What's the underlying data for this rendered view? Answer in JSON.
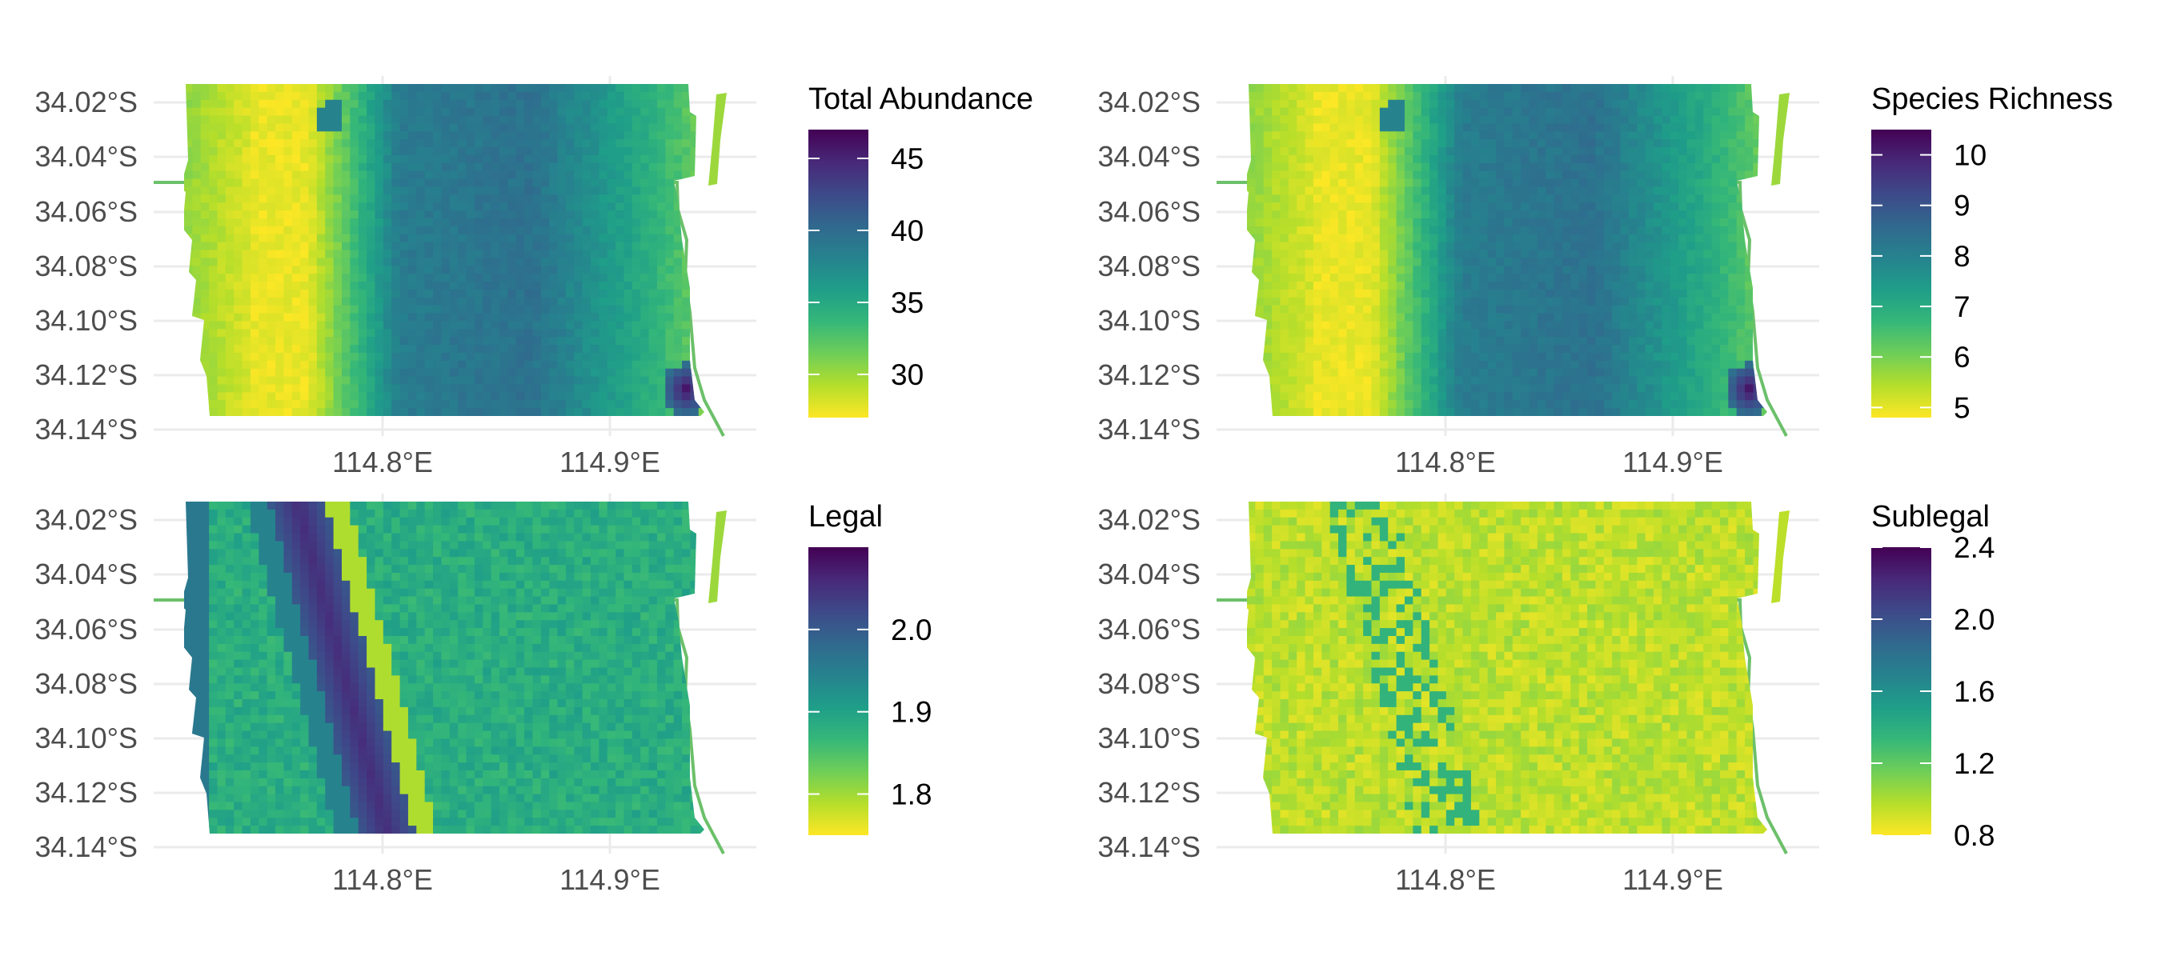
{
  "chart_data": [
    {
      "type": "heatmap",
      "panel": "top-left",
      "legend_title": "Total Abundance",
      "legend_ticks": [
        "30",
        "35",
        "40",
        "45"
      ],
      "legend_range": [
        27,
        47
      ],
      "y_ticks": [
        "34.02°S",
        "34.04°S",
        "34.06°S",
        "34.08°S",
        "34.10°S",
        "34.12°S",
        "34.14°S"
      ],
      "x_ticks": [
        "114.8°E",
        "114.9°E"
      ],
      "x_range": [
        114.71,
        114.96
      ],
      "y_range": [
        -34.145,
        -34.005
      ],
      "pattern": "west-high-low",
      "palette": "viridis-reversed"
    },
    {
      "type": "heatmap",
      "panel": "top-right",
      "legend_title": "Species Richness",
      "legend_ticks": [
        "5",
        "6",
        "7",
        "8",
        "9",
        "10"
      ],
      "legend_range": [
        4.8,
        10.5
      ],
      "y_ticks": [
        "34.02°S",
        "34.04°S",
        "34.06°S",
        "34.08°S",
        "34.10°S",
        "34.12°S",
        "34.14°S"
      ],
      "x_ticks": [
        "114.8°E",
        "114.9°E"
      ],
      "x_range": [
        114.71,
        114.96
      ],
      "y_range": [
        -34.145,
        -34.005
      ],
      "pattern": "west-high-low",
      "palette": "viridis-reversed"
    },
    {
      "type": "heatmap",
      "panel": "bottom-left",
      "legend_title": "Legal",
      "legend_ticks": [
        "1.8",
        "1.9",
        "2.0"
      ],
      "legend_range": [
        1.75,
        2.1
      ],
      "y_ticks": [
        "34.02°S",
        "34.04°S",
        "34.06°S",
        "34.08°S",
        "34.10°S",
        "34.12°S",
        "34.14°S"
      ],
      "x_ticks": [
        "114.8°E",
        "114.9°E"
      ],
      "x_range": [
        114.71,
        114.96
      ],
      "y_range": [
        -34.145,
        -34.005
      ],
      "pattern": "diagonal-band",
      "palette": "viridis-reversed"
    },
    {
      "type": "heatmap",
      "panel": "bottom-right",
      "legend_title": "Sublegal",
      "legend_ticks": [
        "0.8",
        "1.2",
        "1.6",
        "2.0",
        "2.4"
      ],
      "legend_range": [
        0.8,
        2.4
      ],
      "y_ticks": [
        "34.02°S",
        "34.04°S",
        "34.06°S",
        "34.08°S",
        "34.10°S",
        "34.12°S",
        "34.14°S"
      ],
      "x_ticks": [
        "114.8°E",
        "114.9°E"
      ],
      "x_range": [
        114.71,
        114.96
      ],
      "y_range": [
        -34.145,
        -34.005
      ],
      "pattern": "mostly-low-speckled",
      "palette": "viridis-reversed"
    }
  ],
  "colors": {
    "boundary_line": "#6cc06a",
    "grid": "#ebebeb",
    "tick_text": "#4d4d4d",
    "viridis": [
      "#fde725",
      "#b5de2b",
      "#6ece58",
      "#35b779",
      "#1f9e89",
      "#26828e",
      "#31688e",
      "#3e4989",
      "#482878",
      "#440154"
    ]
  }
}
